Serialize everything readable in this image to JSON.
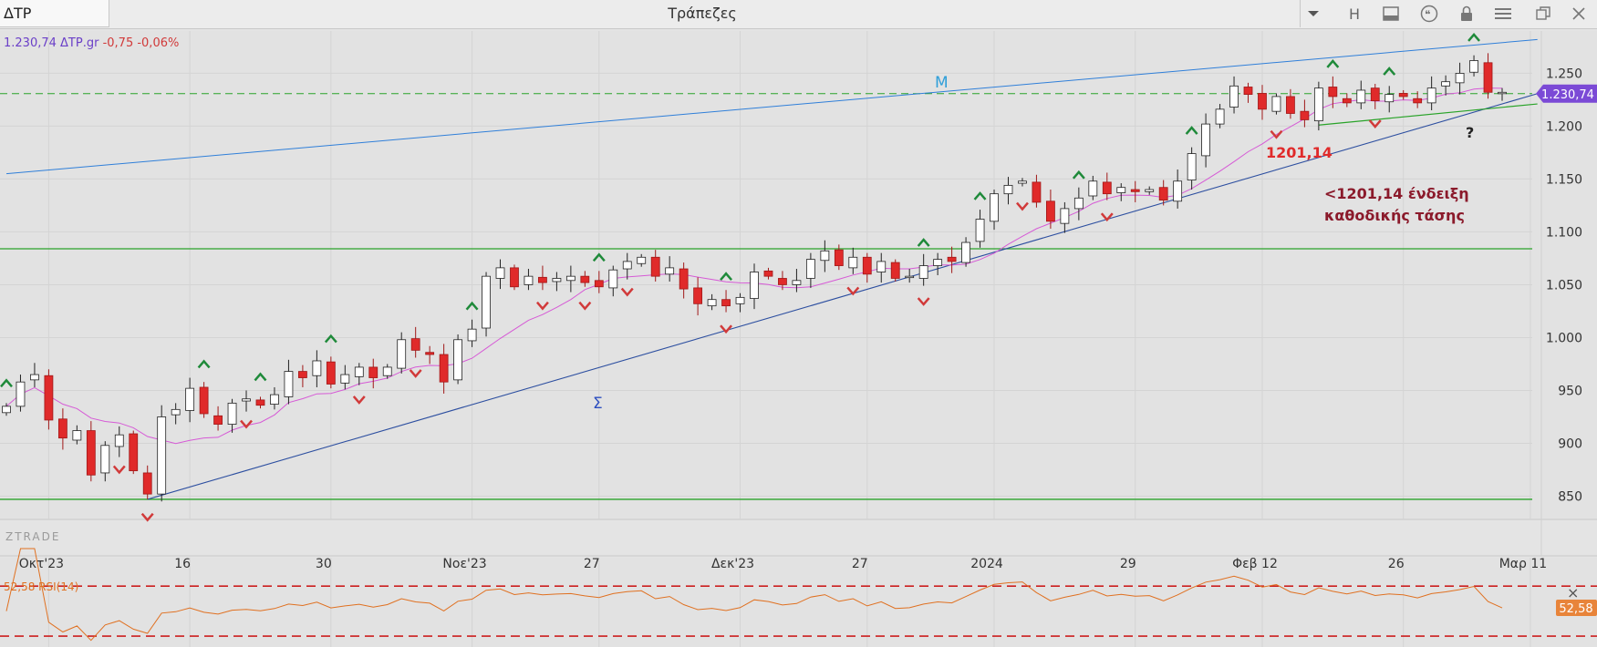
{
  "window": {
    "symbol": "ΔΤΡ",
    "title": "Τράπεζες",
    "toolbar_icons": [
      "chevron-down-icon",
      "h-icon",
      "panel-icon",
      "quote-icon",
      "lock-icon",
      "menu-icon",
      "restore-icon",
      "close-icon"
    ],
    "toolbar_h_label": "H"
  },
  "quote": {
    "last": "1.230,74 ΔΤΡ.gr",
    "change": "-0,75 -0,06%"
  },
  "price_tag": "1.230,74",
  "watermark": "ZTRADE",
  "annotations": {
    "resistance_label": "M",
    "support_label": "Σ",
    "level_label": "1201,14",
    "note_line1": "<1201,14 ένδειξη",
    "note_line2": "καθοδικής τάσης",
    "question": "?"
  },
  "rsi": {
    "legend": "52,58 RSI(14)",
    "value_tag": "52,58",
    "close_label": "×"
  },
  "colors": {
    "up": "#ffffff",
    "down": "#e02a2a",
    "accent_line": "#2f7fd9",
    "support_line": "#2d4fa0",
    "horizontal": "#29a329",
    "ma": "#d65ad6",
    "rsi": "#e07020"
  },
  "chart_data": {
    "type": "candlestick",
    "period": "daily",
    "x_tick_labels": [
      "Οκτ'23",
      "16",
      "30",
      "Νοε'23",
      "27",
      "Δεκ'23",
      "27",
      "2024",
      "29",
      "Φεβ 12",
      "26",
      "Μαρ 11"
    ],
    "y_tick_labels": [
      "850",
      "900",
      "950",
      "1.000",
      "1.050",
      "1.100",
      "1.150",
      "1.200",
      "1.250"
    ],
    "ylim": [
      828,
      1290
    ],
    "closes": [
      935,
      958,
      965,
      922,
      905,
      912,
      870,
      898,
      908,
      874,
      852,
      925,
      932,
      952,
      928,
      918,
      938,
      942,
      936,
      946,
      968,
      962,
      978,
      956,
      965,
      972,
      962,
      972,
      998,
      988,
      984,
      958,
      998,
      1008,
      1058,
      1066,
      1048,
      1058,
      1052,
      1056,
      1058,
      1052,
      1048,
      1064,
      1072,
      1076,
      1058,
      1066,
      1046,
      1032,
      1036,
      1030,
      1038,
      1062,
      1058,
      1050,
      1054,
      1074,
      1082,
      1068,
      1076,
      1060,
      1072,
      1056,
      1058,
      1068,
      1074,
      1072,
      1090,
      1112,
      1136,
      1144,
      1148,
      1128,
      1110,
      1122,
      1132,
      1148,
      1136,
      1142,
      1138,
      1140,
      1130,
      1148,
      1174,
      1202,
      1216,
      1238,
      1230,
      1216,
      1228,
      1212,
      1206,
      1236,
      1228,
      1222,
      1234,
      1224,
      1230,
      1228,
      1222,
      1236,
      1242,
      1250,
      1262,
      1232,
      1232
    ],
    "horizontal_levels": [
      1084,
      847
    ],
    "dashed_level": 1230.74,
    "resistance_line": [
      [
        0,
        1155
      ],
      [
        106,
        1279
      ]
    ],
    "support_line": [
      [
        10,
        847
      ],
      [
        106,
        1221
      ]
    ],
    "moving_average": "MA",
    "rsi_period": 14,
    "rsi_last": 52.58,
    "rsi_levels": [
      70,
      30
    ]
  }
}
